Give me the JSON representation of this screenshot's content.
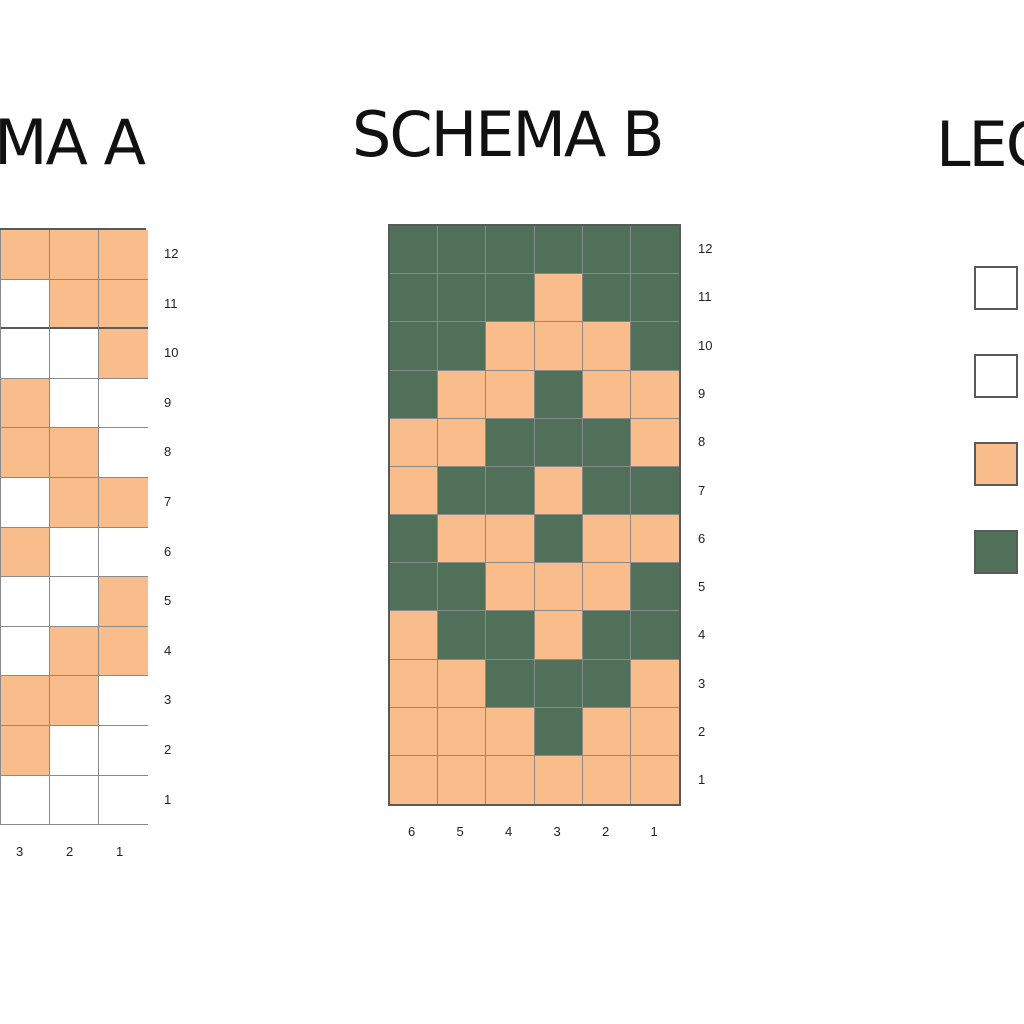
{
  "colors": {
    "white": "#ffffff",
    "peach": "#f9bd8b",
    "green": "#50705a"
  },
  "schema_a": {
    "title": "MA A",
    "rows": [
      "12",
      "11",
      "10",
      "9",
      "8",
      "7",
      "6",
      "5",
      "4",
      "3",
      "2",
      "1"
    ],
    "cols": [
      "3",
      "2",
      "1"
    ],
    "cells": [
      [
        "P",
        "P",
        "P"
      ],
      [
        "W",
        "P",
        "P"
      ],
      [
        "W",
        "W",
        "P"
      ],
      [
        "P",
        "W",
        "W"
      ],
      [
        "P",
        "P",
        "W"
      ],
      [
        "W",
        "P",
        "P"
      ],
      [
        "P",
        "W",
        "W"
      ],
      [
        "W",
        "W",
        "P"
      ],
      [
        "W",
        "P",
        "P"
      ],
      [
        "P",
        "P",
        "W"
      ],
      [
        "P",
        "W",
        "W"
      ],
      [
        "W",
        "W",
        "W"
      ]
    ]
  },
  "schema_b": {
    "title": "SCHEMA B",
    "rows": [
      "12",
      "11",
      "10",
      "9",
      "8",
      "7",
      "6",
      "5",
      "4",
      "3",
      "2",
      "1"
    ],
    "cols": [
      "6",
      "5",
      "4",
      "3",
      "2",
      "1"
    ],
    "cells": [
      [
        "G",
        "G",
        "G",
        "G",
        "G",
        "G"
      ],
      [
        "G",
        "G",
        "G",
        "P",
        "G",
        "G"
      ],
      [
        "G",
        "G",
        "P",
        "P",
        "P",
        "G"
      ],
      [
        "G",
        "P",
        "P",
        "G",
        "P",
        "P"
      ],
      [
        "P",
        "P",
        "G",
        "G",
        "G",
        "P"
      ],
      [
        "P",
        "G",
        "G",
        "P",
        "G",
        "G"
      ],
      [
        "G",
        "P",
        "P",
        "G",
        "P",
        "P"
      ],
      [
        "G",
        "G",
        "P",
        "P",
        "P",
        "G"
      ],
      [
        "P",
        "G",
        "G",
        "P",
        "G",
        "G"
      ],
      [
        "P",
        "P",
        "G",
        "G",
        "G",
        "P"
      ],
      [
        "P",
        "P",
        "P",
        "G",
        "P",
        "P"
      ],
      [
        "P",
        "P",
        "P",
        "P",
        "P",
        "P"
      ]
    ]
  },
  "legend": {
    "title": "LEG",
    "swatches": [
      "white",
      "white",
      "peach",
      "green"
    ]
  }
}
